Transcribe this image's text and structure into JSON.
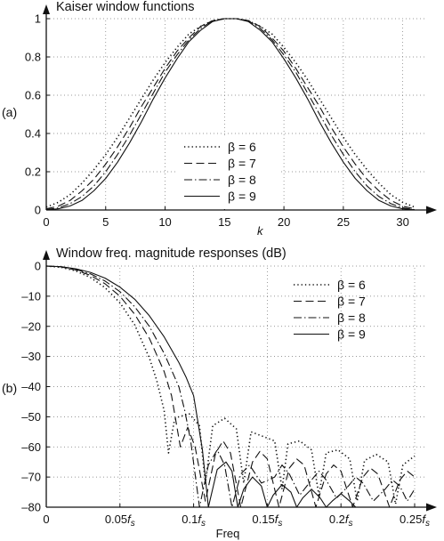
{
  "chart_data": [
    {
      "type": "line",
      "panel_label": "(a)",
      "title": "Kaiser window functions",
      "xlabel": "k",
      "ylabel": "",
      "xlim": [
        0,
        31
      ],
      "ylim": [
        0,
        1
      ],
      "xticks": [
        0,
        5,
        10,
        15,
        20,
        25,
        30
      ],
      "xtick_labels": [
        "0",
        "5",
        "10",
        "15",
        "20",
        "25",
        "30"
      ],
      "yticks": [
        0,
        0.2,
        0.4,
        0.6,
        0.8,
        1
      ],
      "ytick_labels": [
        "0",
        "0.2",
        "0.4",
        "0.6",
        "0.8",
        "1"
      ],
      "grid": true,
      "legend_position": "bottom-center",
      "x": [
        0,
        1,
        2,
        3,
        4,
        5,
        6,
        7,
        8,
        9,
        10,
        11,
        12,
        13,
        14,
        15,
        16,
        17,
        18,
        19,
        20,
        21,
        22,
        23,
        24,
        25,
        26,
        27,
        28,
        29,
        30,
        31
      ],
      "series": [
        {
          "name": "β = 6",
          "linestyle": "dotted",
          "values": [
            0.015,
            0.04,
            0.08,
            0.14,
            0.21,
            0.29,
            0.38,
            0.48,
            0.58,
            0.68,
            0.77,
            0.85,
            0.92,
            0.96,
            0.99,
            1.0,
            1.0,
            0.99,
            0.96,
            0.92,
            0.85,
            0.77,
            0.68,
            0.58,
            0.48,
            0.38,
            0.29,
            0.21,
            0.14,
            0.08,
            0.04,
            0.015
          ]
        },
        {
          "name": "β = 7",
          "linestyle": "dashed",
          "values": [
            0.006,
            0.02,
            0.05,
            0.1,
            0.16,
            0.24,
            0.33,
            0.43,
            0.54,
            0.64,
            0.74,
            0.83,
            0.9,
            0.96,
            0.99,
            1.0,
            1.0,
            0.99,
            0.96,
            0.9,
            0.83,
            0.74,
            0.64,
            0.54,
            0.43,
            0.33,
            0.24,
            0.16,
            0.1,
            0.05,
            0.02,
            0.006
          ]
        },
        {
          "name": "β = 8",
          "linestyle": "dashdot",
          "values": [
            0.002,
            0.011,
            0.033,
            0.07,
            0.125,
            0.2,
            0.29,
            0.39,
            0.5,
            0.61,
            0.72,
            0.81,
            0.89,
            0.95,
            0.99,
            1.0,
            1.0,
            0.99,
            0.95,
            0.89,
            0.81,
            0.72,
            0.61,
            0.5,
            0.39,
            0.29,
            0.2,
            0.125,
            0.07,
            0.033,
            0.011,
            0.002
          ]
        },
        {
          "name": "β = 9",
          "linestyle": "solid",
          "values": [
            0.0009,
            0.006,
            0.021,
            0.05,
            0.1,
            0.165,
            0.25,
            0.35,
            0.46,
            0.58,
            0.69,
            0.79,
            0.88,
            0.94,
            0.985,
            1.0,
            1.0,
            0.985,
            0.94,
            0.88,
            0.79,
            0.69,
            0.58,
            0.46,
            0.35,
            0.25,
            0.165,
            0.1,
            0.05,
            0.021,
            0.006,
            0.0009
          ]
        }
      ]
    },
    {
      "type": "line",
      "panel_label": "(b)",
      "title": "Window freq. magnitude responses (dB)",
      "xlabel": "Freq",
      "ylabel": "",
      "xlim": [
        0,
        0.25
      ],
      "ylim": [
        -80,
        0
      ],
      "xticks": [
        0,
        0.05,
        0.1,
        0.15,
        0.2,
        0.25
      ],
      "xtick_labels": [
        "0",
        "0.05f",
        "0.1f",
        "0.15f",
        "0.2f",
        "0.25f"
      ],
      "xtick_subscript": "s",
      "yticks": [
        0,
        -10,
        -20,
        -30,
        -40,
        -50,
        -60,
        -70,
        -80
      ],
      "ytick_labels": [
        "0",
        "–10",
        "–20",
        "–30",
        "–40",
        "–50",
        "–60",
        "–70",
        "–80"
      ],
      "grid": true,
      "legend_position": "top-right",
      "series": [
        {
          "name": "β = 6",
          "linestyle": "dotted",
          "x": [
            0,
            0.01,
            0.02,
            0.03,
            0.04,
            0.05,
            0.06,
            0.07,
            0.075,
            0.08,
            0.083,
            0.087,
            0.09,
            0.097,
            0.104,
            0.108,
            0.113,
            0.121,
            0.129,
            0.134,
            0.139,
            0.147,
            0.155,
            0.16,
            0.164,
            0.172,
            0.18,
            0.185,
            0.19,
            0.198,
            0.206,
            0.211,
            0.216,
            0.224,
            0.232,
            0.237,
            0.242,
            0.25
          ],
          "values": [
            0,
            -0.4,
            -1.6,
            -3.8,
            -7.2,
            -12.2,
            -19.5,
            -30.5,
            -38,
            -48,
            -62,
            -51,
            -50,
            -49,
            -53,
            -72,
            -53,
            -50.5,
            -54,
            -72,
            -55,
            -56.5,
            -58,
            -74,
            -59,
            -58,
            -61,
            -76,
            -62,
            -61,
            -64,
            -78,
            -64.5,
            -62.5,
            -65,
            -79,
            -66,
            -63
          ]
        },
        {
          "name": "β = 7",
          "linestyle": "dashed",
          "x": [
            0,
            0.01,
            0.02,
            0.03,
            0.04,
            0.05,
            0.06,
            0.07,
            0.08,
            0.085,
            0.091,
            0.096,
            0.101,
            0.108,
            0.115,
            0.12,
            0.125,
            0.132,
            0.14,
            0.145,
            0.15,
            0.158,
            0.165,
            0.17,
            0.175,
            0.183,
            0.19,
            0.195,
            0.2,
            0.208,
            0.215,
            0.22,
            0.225,
            0.233,
            0.24,
            0.245,
            0.25
          ],
          "values": [
            0,
            -0.3,
            -1.3,
            -3.1,
            -5.9,
            -10,
            -16,
            -24,
            -35,
            -43,
            -60,
            -53.5,
            -60,
            -78,
            -62,
            -58,
            -62,
            -80,
            -65,
            -61.5,
            -64,
            -80,
            -67,
            -64,
            -66,
            -80,
            -69,
            -66,
            -68,
            -80,
            -70,
            -67,
            -69,
            -80,
            -71,
            -68,
            -70
          ]
        },
        {
          "name": "β = 8",
          "linestyle": "dashdot",
          "x": [
            0,
            0.01,
            0.02,
            0.03,
            0.04,
            0.05,
            0.06,
            0.07,
            0.08,
            0.09,
            0.094,
            0.098,
            0.104,
            0.11,
            0.116,
            0.121,
            0.126,
            0.132,
            0.138,
            0.146,
            0.155,
            0.16,
            0.165,
            0.172,
            0.18,
            0.185,
            0.19,
            0.197,
            0.205,
            0.21,
            0.215,
            0.222,
            0.23,
            0.235,
            0.24,
            0.245,
            0.25
          ],
          "values": [
            0,
            -0.25,
            -1.1,
            -2.6,
            -5,
            -8.5,
            -13.5,
            -20,
            -29,
            -40,
            -48,
            -58,
            -80,
            -66,
            -61,
            -66,
            -80,
            -69,
            -66,
            -72,
            -70,
            -66,
            -69,
            -76,
            -71,
            -68,
            -71,
            -77,
            -73,
            -70,
            -72,
            -78,
            -74,
            -71,
            -73,
            -78,
            -74
          ]
        },
        {
          "name": "β = 9",
          "linestyle": "solid",
          "x": [
            0,
            0.01,
            0.02,
            0.03,
            0.04,
            0.05,
            0.06,
            0.07,
            0.08,
            0.09,
            0.095,
            0.1,
            0.103,
            0.106,
            0.11,
            0.116,
            0.122,
            0.126,
            0.13,
            0.134,
            0.14,
            0.146,
            0.15,
            0.154,
            0.16,
            0.166,
            0.17,
            0.174,
            0.18,
            0.186,
            0.19,
            0.194,
            0.2,
            0.206,
            0.21
          ],
          "values": [
            0,
            -0.2,
            -0.9,
            -2.1,
            -4,
            -7,
            -11,
            -16.5,
            -23.5,
            -32,
            -37,
            -43,
            -52,
            -61,
            -80,
            -67.5,
            -65,
            -68,
            -80,
            -74,
            -70,
            -73,
            -80,
            -76,
            -72.5,
            -75,
            -80,
            -77,
            -74,
            -77,
            -80,
            -78,
            -75.5,
            -78,
            -80
          ]
        }
      ]
    }
  ]
}
